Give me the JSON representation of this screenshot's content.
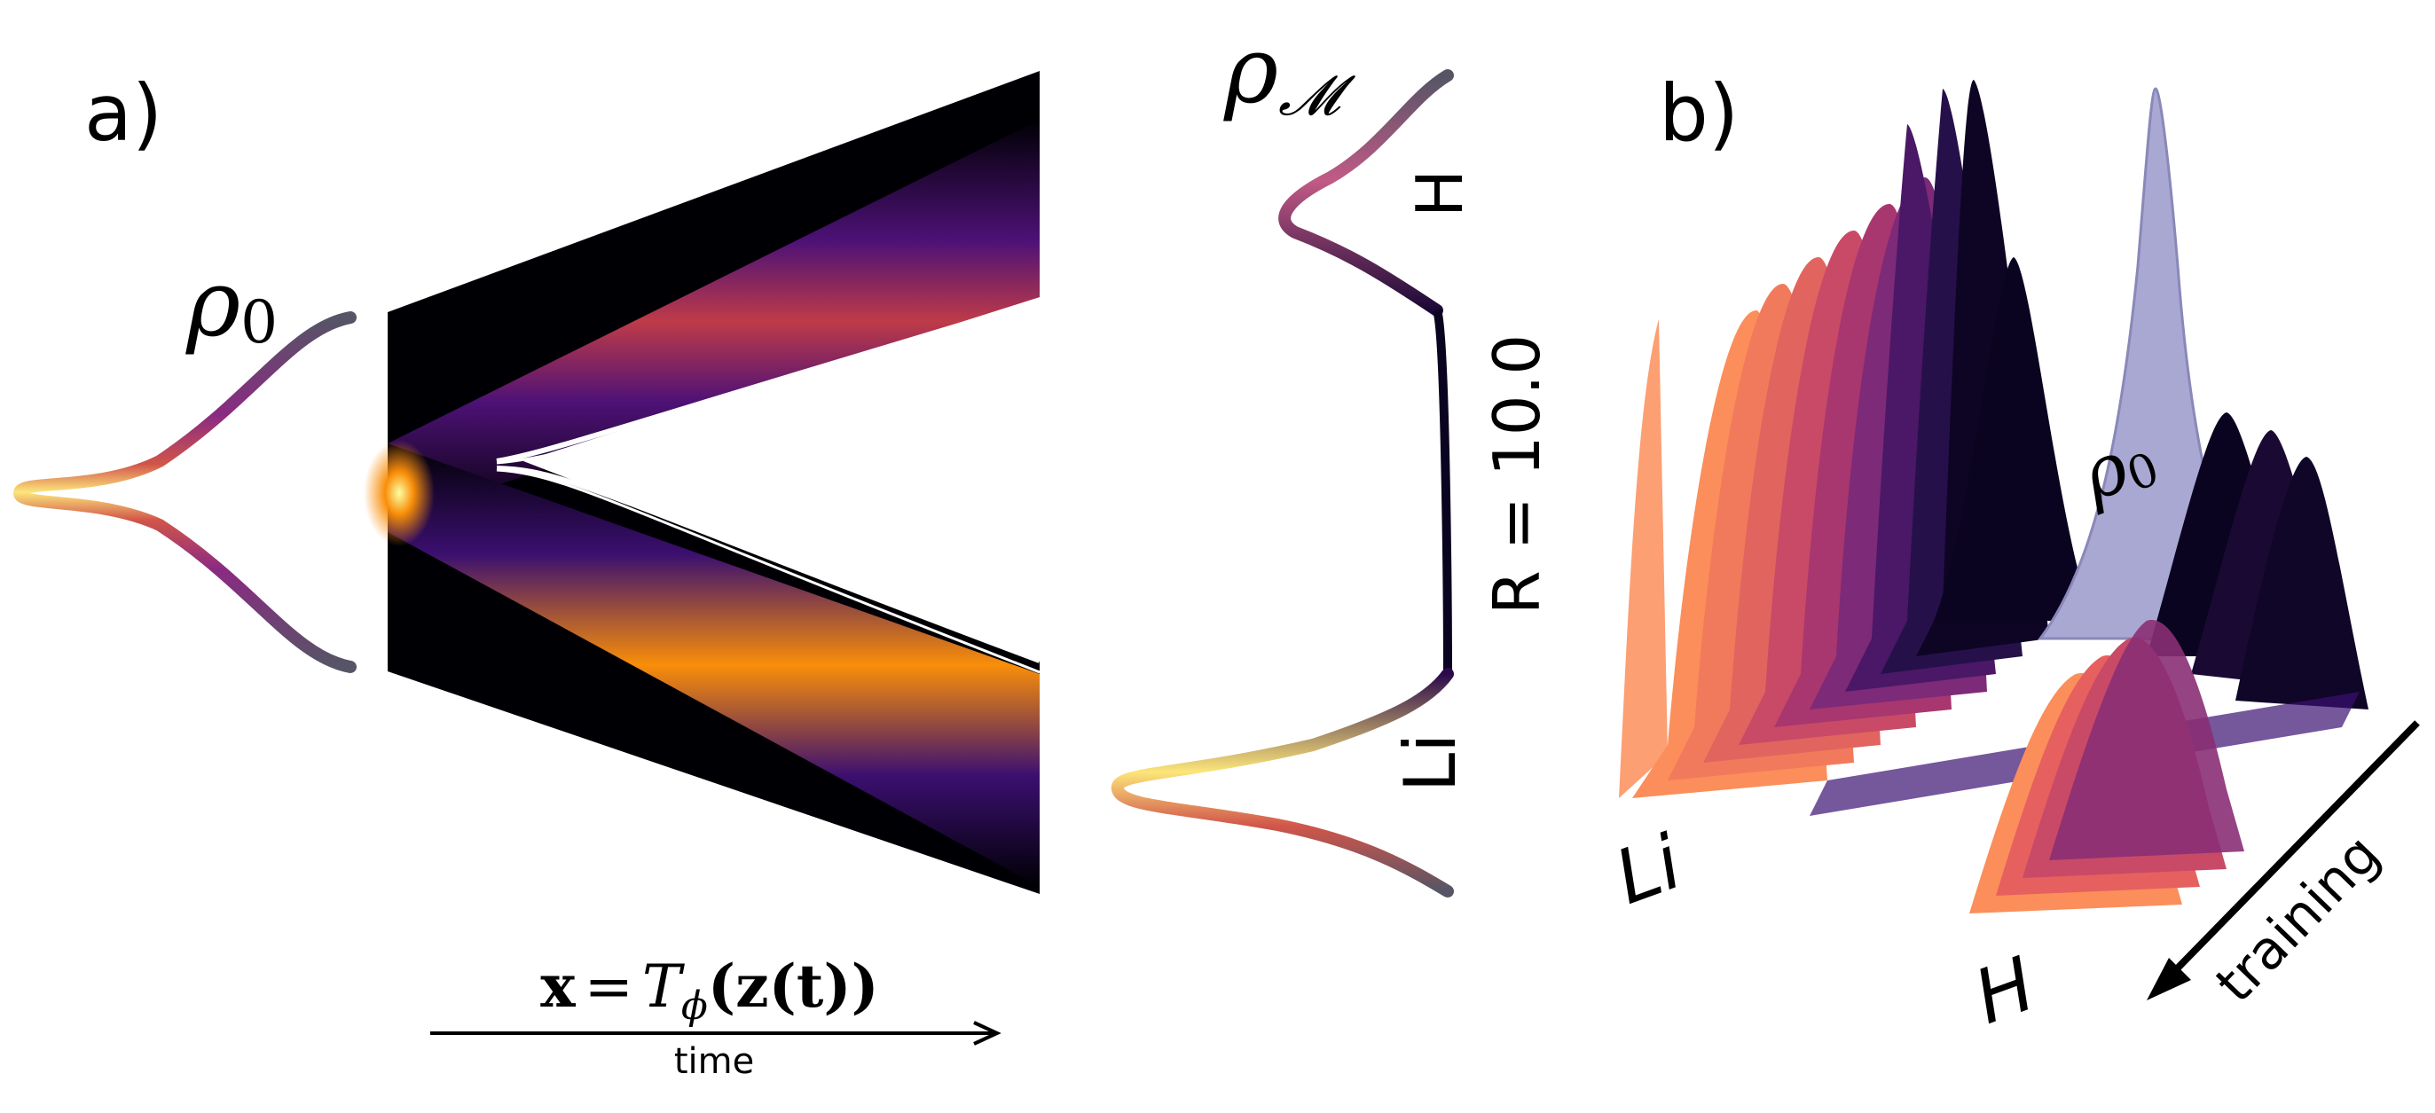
{
  "panel_a": {
    "label": "a)",
    "rho0_symbol": "ρ",
    "rho0_subscript": "0",
    "rhoM_symbol": "ρ",
    "rhoM_subscript": "𝓜",
    "label_H": "H",
    "label_Li": "Li",
    "r_label": "R = 10.0",
    "transform_formula_x": "x",
    "transform_formula_eq": "=",
    "transform_formula_T": "T",
    "transform_formula_phi": "ϕ",
    "transform_formula_rest": "(z(t))",
    "time_label": "time"
  },
  "panel_b": {
    "label": "b)",
    "rho0_symbol": "ρ",
    "rho0_subscript": "0",
    "label_Li": "Li",
    "label_H": "H",
    "training_label": "training"
  },
  "colors": {
    "inferno_dark": "#0b0420",
    "inferno_purple": "#4a0c6b",
    "inferno_magenta": "#a52c60",
    "inferno_red": "#d24644",
    "inferno_orange": "#f98e09",
    "inferno_yellow": "#fcffa4",
    "rho0_fill": "#a9a8d3",
    "gray_tail": "#555566"
  }
}
